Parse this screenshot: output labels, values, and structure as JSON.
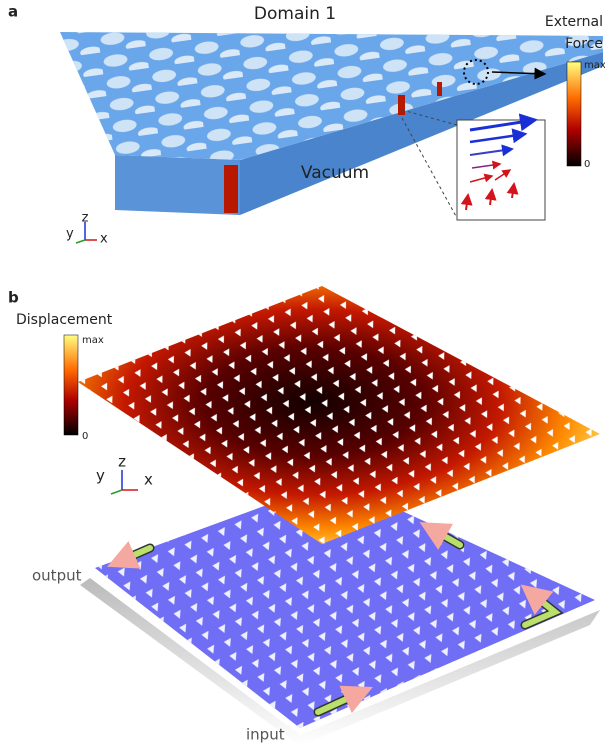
{
  "panel_a": {
    "label": "a",
    "title": "Domain 1",
    "region": "Vacuum",
    "colorbar": {
      "title_lines": [
        "External",
        "Force"
      ],
      "max": "max",
      "min": "0"
    },
    "axes": {
      "y": "y",
      "z": "z",
      "x": "x"
    }
  },
  "panel_b": {
    "label": "b",
    "colorbar": {
      "title": "Displacement",
      "max": "max",
      "min": "0"
    },
    "axes": {
      "y": "y",
      "z": "z",
      "x": "x"
    },
    "output": "output",
    "input": "input"
  }
}
